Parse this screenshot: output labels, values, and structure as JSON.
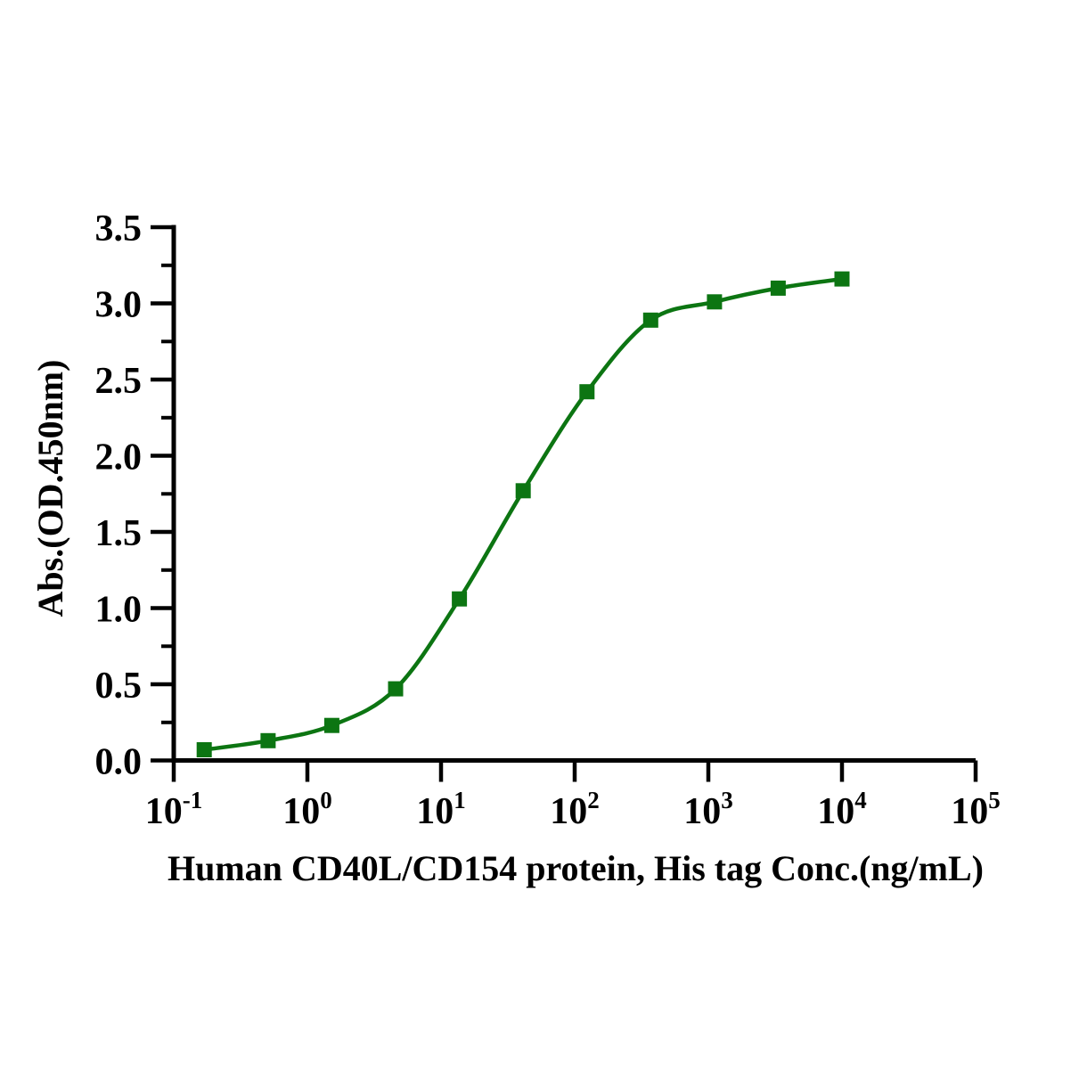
{
  "chart_data": {
    "type": "line",
    "subtype": "sigmoidal-dose-response-elisa",
    "title": "",
    "xlabel": "Human CD40L/CD154 protein, His tag Conc.(ng/mL)",
    "ylabel": "Abs.(OD.450nm)",
    "x_scale": "log10",
    "xlim_exponents": [
      -1,
      5
    ],
    "ylim": [
      0,
      3.5
    ],
    "grid": false,
    "legend": "none",
    "background_color": "#ffffff",
    "axis_color": "#000000",
    "x_ticks": [
      {
        "base": "10",
        "exp": "-1"
      },
      {
        "base": "10",
        "exp": "0"
      },
      {
        "base": "10",
        "exp": "1"
      },
      {
        "base": "10",
        "exp": "2"
      },
      {
        "base": "10",
        "exp": "3"
      },
      {
        "base": "10",
        "exp": "4"
      },
      {
        "base": "10",
        "exp": "5"
      }
    ],
    "y_ticks": [
      "0.0",
      "0.5",
      "1.0",
      "1.5",
      "2.0",
      "2.5",
      "3.0",
      "3.5"
    ],
    "y_minor_ticks": [
      0.25,
      0.75,
      1.25,
      1.75,
      2.25,
      2.75,
      3.25
    ],
    "series": [
      {
        "name": "Human CD40L/CD154 protein, His tag",
        "color": "#0c7512",
        "marker": "square",
        "x": [
          0.169,
          0.508,
          1.524,
          4.572,
          13.72,
          41.15,
          123.5,
          370.4,
          1111,
          3333,
          10000
        ],
        "y": [
          0.07,
          0.13,
          0.23,
          0.47,
          1.06,
          1.77,
          2.42,
          2.89,
          3.01,
          3.1,
          3.16
        ]
      }
    ]
  }
}
